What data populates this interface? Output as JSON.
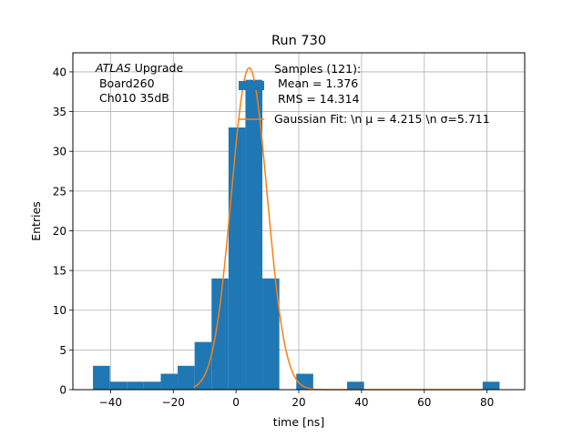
{
  "chart_data": {
    "type": "bar",
    "title": "Run 730",
    "xlabel": "time [ns]",
    "ylabel": "Entries",
    "xlim": [
      -52,
      92
    ],
    "ylim": [
      0,
      42.4
    ],
    "xticks": [
      -40,
      -20,
      0,
      20,
      40,
      60,
      80
    ],
    "yticks": [
      0,
      5,
      10,
      15,
      20,
      25,
      30,
      35,
      40
    ],
    "grid": true,
    "bin_width": 5.4,
    "bins": [
      {
        "left": -45.6,
        "count": 3
      },
      {
        "left": -40.2,
        "count": 1
      },
      {
        "left": -34.8,
        "count": 1
      },
      {
        "left": -29.4,
        "count": 1
      },
      {
        "left": -24.0,
        "count": 2
      },
      {
        "left": -18.6,
        "count": 3
      },
      {
        "left": -13.2,
        "count": 6
      },
      {
        "left": -7.8,
        "count": 14
      },
      {
        "left": -2.4,
        "count": 33
      },
      {
        "left": 3.0,
        "count": 39
      },
      {
        "left": 8.4,
        "count": 14
      },
      {
        "left": 19.2,
        "count": 2
      },
      {
        "left": 35.4,
        "count": 1
      },
      {
        "left": 78.6,
        "count": 1
      }
    ],
    "fit": {
      "mu": 4.215,
      "sigma": 5.711,
      "amplitude": 40.5,
      "x_range": [
        -13.5,
        79
      ]
    },
    "annotation": {
      "line1_italic": "ATLAS",
      "line1_rest": " Upgrade",
      "line2": " Board260",
      "line3": " Ch010 35dB"
    },
    "legend": {
      "placement": "top-right",
      "histogram_label": [
        "Samples (121):",
        " Mean = 1.376",
        " RMS = 14.314"
      ],
      "fit_label": "Gaussian Fit: \\n μ = 4.215 \\n σ=5.711"
    },
    "colors": {
      "bars": "#1f77b4",
      "fit": "#ff7f0e",
      "grid": "#b0b0b0"
    }
  }
}
